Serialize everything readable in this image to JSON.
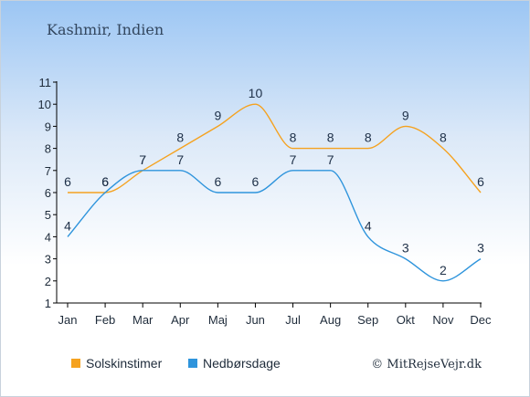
{
  "chart_data": {
    "type": "line",
    "title": "Kashmir, Indien",
    "categories": [
      "Jan",
      "Feb",
      "Mar",
      "Apr",
      "Maj",
      "Jun",
      "Jul",
      "Aug",
      "Sep",
      "Okt",
      "Nov",
      "Dec"
    ],
    "y_ticks": [
      "1",
      "2",
      "3",
      "4",
      "5",
      "6",
      "7",
      "8",
      "9",
      "10",
      "11"
    ],
    "ylim": [
      1,
      11
    ],
    "grid": false,
    "legend_position": "bottom-left",
    "series": [
      {
        "name": "Solskinstimer",
        "color": "#f5a21f",
        "values": [
          6,
          6,
          7,
          8,
          9,
          10,
          8,
          8,
          8,
          9,
          8,
          6
        ]
      },
      {
        "name": "Nedbørsdage",
        "color": "#2e94dc",
        "values": [
          4,
          6,
          7,
          7,
          6,
          6,
          7,
          7,
          4,
          3,
          2,
          3
        ]
      }
    ]
  },
  "credit": "© MitRejseVejr.dk"
}
